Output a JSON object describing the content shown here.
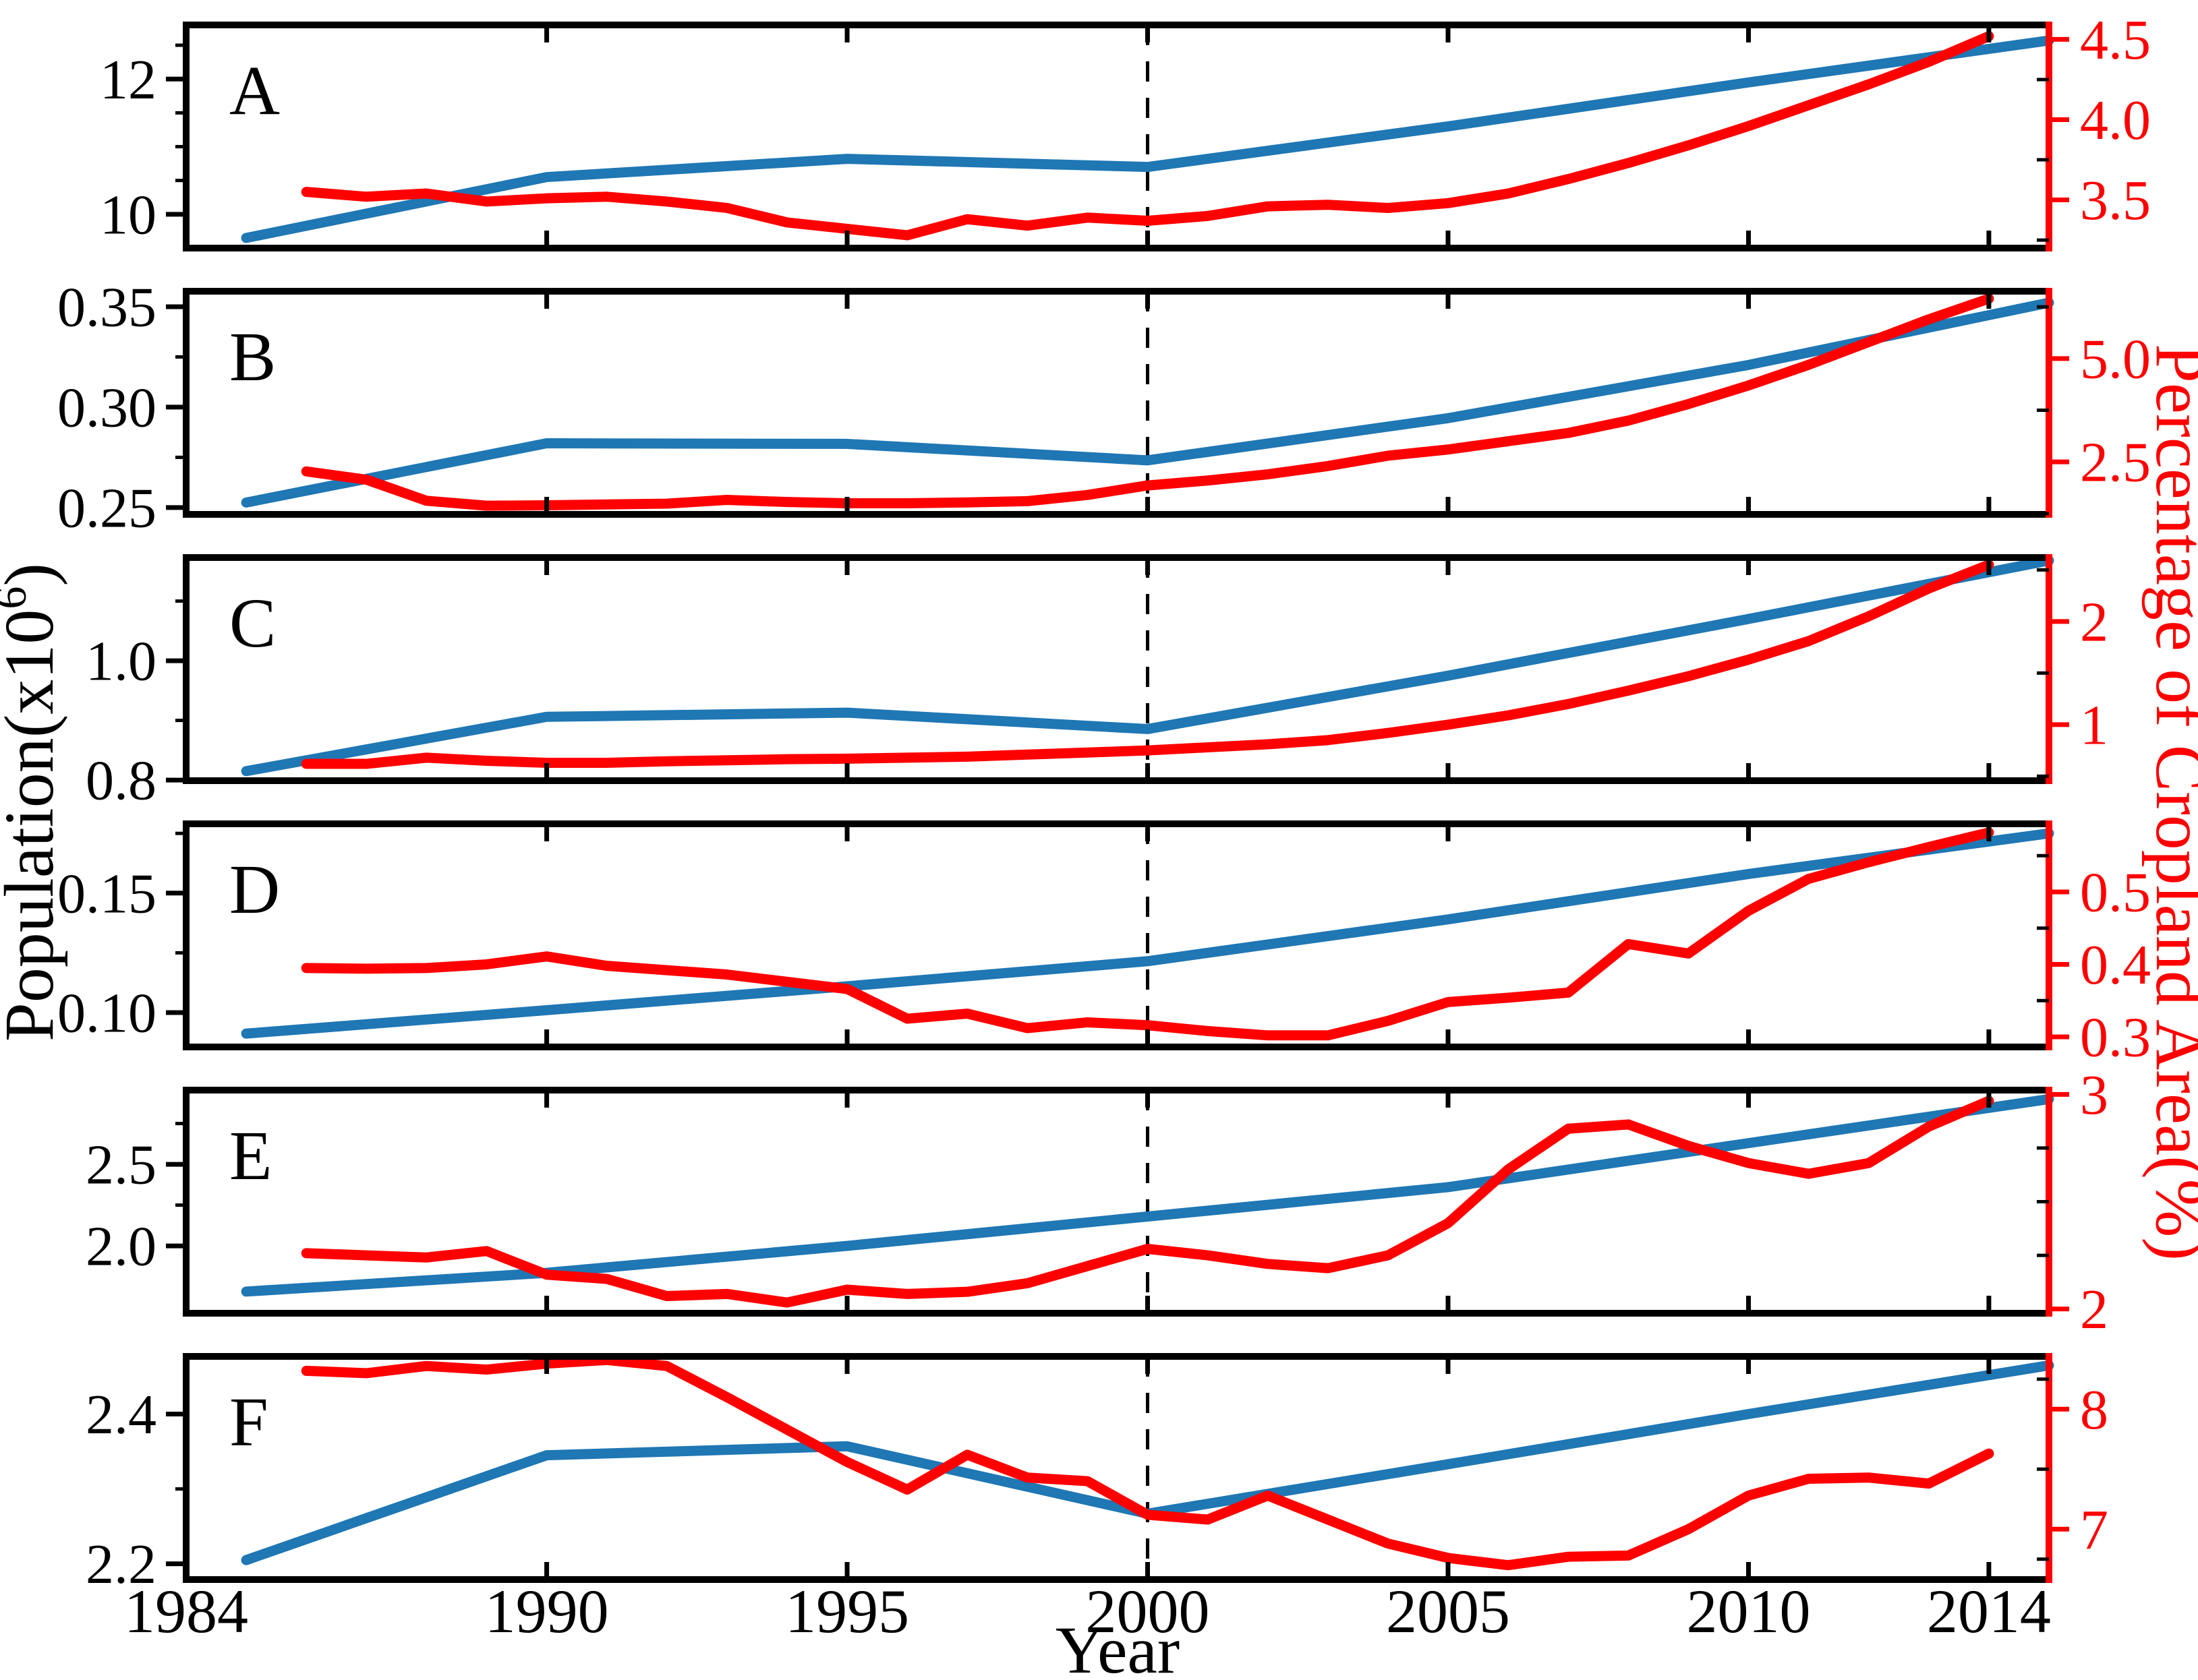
{
  "chart_data": {
    "type": "line",
    "title": "",
    "xlabel": "Year",
    "ylabel_left": {
      "text": "Population(x10",
      "superscript": "6",
      "suffix": ")"
    },
    "ylabel_right": "Percentage of Cropland Area(%)",
    "xlim": [
      1984,
      2015
    ],
    "x_major_ticks": [
      1984,
      1990,
      1995,
      2000,
      2005,
      2010,
      2014
    ],
    "x_tick_labels": [
      "1984",
      "1990",
      "1995",
      "2000",
      "2005",
      "2010",
      "2014"
    ],
    "dashed_line_x": 2000,
    "legend": {
      "shown": false
    },
    "grid": false,
    "colors": {
      "population_line": "#1f77b4",
      "cropland_line": "#ff0000",
      "axis": "#000000",
      "right_axis": "#ff0000",
      "dashed_line": "#000000"
    },
    "series_names": {
      "blue": "Population",
      "red": "Percentage of Cropland Area"
    },
    "panels": [
      {
        "label": "A",
        "left_ylim": [
          9.5,
          12.8
        ],
        "left_ticks": [
          10,
          12
        ],
        "left_tick_labels": [
          "10",
          "12"
        ],
        "left_minor_ticks": [
          10.5,
          11.0,
          11.5,
          12.5
        ],
        "right_ylim": [
          3.2,
          4.59
        ],
        "right_ticks": [
          3.5,
          4.0,
          4.5
        ],
        "right_tick_labels": [
          "3.5",
          "4.0",
          "4.5"
        ],
        "right_minor_ticks": [
          3.25,
          3.75,
          4.25
        ],
        "population": {
          "years": [
            1985,
            1990,
            1995,
            2000,
            2005,
            2010,
            2015
          ],
          "values": [
            9.65,
            10.55,
            10.82,
            10.7,
            11.3,
            11.95,
            12.57
          ]
        },
        "cropland": {
          "years": [
            1986,
            1987,
            1988,
            1989,
            1990,
            1991,
            1992,
            1993,
            1994,
            1995,
            1996,
            1997,
            1998,
            1999,
            2000,
            2001,
            2002,
            2003,
            2004,
            2005,
            2006,
            2007,
            2008,
            2009,
            2010,
            2011,
            2012,
            2013,
            2014
          ],
          "values": [
            3.55,
            3.52,
            3.54,
            3.49,
            3.51,
            3.52,
            3.49,
            3.45,
            3.36,
            3.32,
            3.28,
            3.38,
            3.34,
            3.39,
            3.37,
            3.4,
            3.46,
            3.47,
            3.45,
            3.48,
            3.54,
            3.63,
            3.73,
            3.84,
            3.96,
            4.09,
            4.22,
            4.36,
            4.52
          ]
        }
      },
      {
        "label": "B",
        "left_ylim": [
          0.2466,
          0.3577
        ],
        "left_ticks": [
          0.25,
          0.3,
          0.35
        ],
        "left_tick_labels": [
          "0.25",
          "0.30",
          "0.35"
        ],
        "left_minor_ticks": [
          0.275,
          0.325
        ],
        "right_ylim": [
          1.23,
          6.63
        ],
        "right_ticks": [
          2.5,
          5.0
        ],
        "right_tick_labels": [
          "2.5",
          "5.0"
        ],
        "right_minor_ticks": [
          1.25,
          3.75,
          6.25
        ],
        "population": {
          "years": [
            1985,
            1990,
            1995,
            2000,
            2005,
            2010,
            2015
          ],
          "values": [
            0.2525,
            0.282,
            0.2817,
            0.2735,
            0.2945,
            0.321,
            0.352
          ]
        },
        "cropland": {
          "years": [
            1986,
            1987,
            1988,
            1989,
            1990,
            1991,
            1992,
            1993,
            1994,
            1995,
            1996,
            1997,
            1998,
            1999,
            2000,
            2001,
            2002,
            2003,
            2004,
            2005,
            2006,
            2007,
            2008,
            2009,
            2010,
            2011,
            2012,
            2013,
            2014
          ],
          "values": [
            2.27,
            2.07,
            1.56,
            1.44,
            1.45,
            1.47,
            1.49,
            1.58,
            1.53,
            1.5,
            1.5,
            1.52,
            1.55,
            1.7,
            1.93,
            2.05,
            2.2,
            2.4,
            2.65,
            2.8,
            3.0,
            3.2,
            3.5,
            3.9,
            4.35,
            4.85,
            5.4,
            5.95,
            6.45
          ]
        }
      },
      {
        "label": "C",
        "left_ylim": [
          0.799,
          1.173
        ],
        "left_ticks": [
          0.8,
          1.0
        ],
        "left_tick_labels": [
          "0.8",
          "1.0"
        ],
        "left_minor_ticks": [
          0.9,
          1.1
        ],
        "right_ylim": [
          0.457,
          2.62
        ],
        "right_ticks": [
          1,
          2
        ],
        "right_tick_labels": [
          "1",
          "2"
        ],
        "right_minor_ticks": [
          0.5,
          1.5,
          2.5
        ],
        "population": {
          "years": [
            1985,
            1990,
            1995,
            2000,
            2005,
            2010,
            2015
          ],
          "values": [
            0.815,
            0.906,
            0.913,
            0.8855,
            0.975,
            1.07,
            1.168
          ]
        },
        "cropland": {
          "years": [
            1986,
            1987,
            1988,
            1989,
            1990,
            1991,
            1992,
            1993,
            1994,
            1995,
            1996,
            1997,
            1998,
            1999,
            2000,
            2001,
            2002,
            2003,
            2004,
            2005,
            2006,
            2007,
            2008,
            2009,
            2010,
            2011,
            2012,
            2013,
            2014
          ],
          "values": [
            0.62,
            0.62,
            0.68,
            0.65,
            0.63,
            0.63,
            0.645,
            0.655,
            0.665,
            0.67,
            0.68,
            0.69,
            0.71,
            0.73,
            0.75,
            0.78,
            0.81,
            0.85,
            0.92,
            1.0,
            1.09,
            1.2,
            1.33,
            1.47,
            1.63,
            1.81,
            2.05,
            2.32,
            2.55
          ]
        }
      },
      {
        "label": "D",
        "left_ylim": [
          0.0856,
          0.179
        ],
        "left_ticks": [
          0.1,
          0.15
        ],
        "left_tick_labels": [
          "0.10",
          "0.15"
        ],
        "left_minor_ticks": [
          0.125,
          0.175
        ],
        "right_ylim": [
          0.286,
          0.594
        ],
        "right_ticks": [
          0.3,
          0.4,
          0.5
        ],
        "right_tick_labels": [
          "0.3",
          "0.4",
          "0.5"
        ],
        "right_minor_ticks": [
          0.35,
          0.45,
          0.55
        ],
        "population": {
          "years": [
            1985,
            1990,
            1995,
            2000,
            2005,
            2010,
            2015
          ],
          "values": [
            0.0912,
            0.101,
            0.111,
            0.1215,
            0.139,
            0.158,
            0.175
          ]
        },
        "cropland": {
          "years": [
            1986,
            1987,
            1988,
            1989,
            1990,
            1991,
            1992,
            1993,
            1994,
            1995,
            1996,
            1997,
            1998,
            1999,
            2000,
            2001,
            2002,
            2003,
            2004,
            2005,
            2006,
            2007,
            2008,
            2009,
            2010,
            2011,
            2012,
            2013,
            2014
          ],
          "values": [
            0.395,
            0.394,
            0.395,
            0.4,
            0.411,
            0.398,
            0.392,
            0.386,
            0.376,
            0.366,
            0.325,
            0.332,
            0.312,
            0.32,
            0.316,
            0.308,
            0.302,
            0.302,
            0.322,
            0.348,
            0.354,
            0.361,
            0.428,
            0.415,
            0.474,
            0.518,
            0.541,
            0.562,
            0.582
          ]
        }
      },
      {
        "label": "E",
        "left_ylim": [
          1.587,
          2.955
        ],
        "left_ticks": [
          2.0,
          2.5
        ],
        "left_tick_labels": [
          "2.0",
          "2.5"
        ],
        "left_minor_ticks": [
          2.25,
          2.75
        ],
        "right_ylim": [
          1.98,
          3.02
        ],
        "right_ticks": [
          2,
          3
        ],
        "right_tick_labels": [
          "2",
          "3"
        ],
        "right_minor_ticks": [
          2.25,
          2.5,
          2.75
        ],
        "population": {
          "years": [
            1985,
            1990,
            1995,
            2000,
            2005,
            2010,
            2015
          ],
          "values": [
            1.72,
            1.835,
            2.0,
            2.18,
            2.36,
            2.63,
            2.9
          ]
        },
        "cropland": {
          "years": [
            1986,
            1987,
            1988,
            1989,
            1990,
            1991,
            1992,
            1993,
            1994,
            1995,
            1996,
            1997,
            1998,
            1999,
            2000,
            2001,
            2002,
            2003,
            2004,
            2005,
            2006,
            2007,
            2008,
            2009,
            2010,
            2011,
            2012,
            2013,
            2014
          ],
          "values": [
            2.26,
            2.25,
            2.24,
            2.27,
            2.16,
            2.14,
            2.06,
            2.07,
            2.03,
            2.09,
            2.07,
            2.08,
            2.12,
            2.2,
            2.28,
            2.25,
            2.21,
            2.19,
            2.25,
            2.4,
            2.65,
            2.84,
            2.86,
            2.76,
            2.68,
            2.63,
            2.68,
            2.85,
            2.97
          ]
        }
      },
      {
        "label": "F",
        "left_ylim": [
          2.179,
          2.477
        ],
        "left_ticks": [
          2.2,
          2.4
        ],
        "left_tick_labels": [
          "2.2",
          "2.4"
        ],
        "left_minor_ticks": [
          2.3
        ],
        "right_ylim": [
          6.58,
          8.44
        ],
        "right_ticks": [
          7,
          8
        ],
        "right_tick_labels": [
          "7",
          "8"
        ],
        "right_minor_ticks": [
          6.75,
          7.5,
          8.25
        ],
        "population": {
          "years": [
            1985,
            1990,
            1995,
            2000,
            2005,
            2010,
            2015
          ],
          "values": [
            2.205,
            2.345,
            2.357,
            2.267,
            2.333,
            2.4,
            2.465
          ]
        },
        "cropland": {
          "years": [
            1986,
            1987,
            1988,
            1989,
            1990,
            1991,
            1992,
            1993,
            1994,
            1995,
            1996,
            1997,
            1998,
            1999,
            2000,
            2001,
            2002,
            2003,
            2004,
            2005,
            2006,
            2007,
            2008,
            2009,
            2010,
            2011,
            2012,
            2013,
            2014
          ],
          "values": [
            8.32,
            8.3,
            8.36,
            8.33,
            8.38,
            8.41,
            8.36,
            8.1,
            7.83,
            7.56,
            7.33,
            7.62,
            7.43,
            7.4,
            7.12,
            7.08,
            7.28,
            7.08,
            6.88,
            6.76,
            6.7,
            6.77,
            6.78,
            7.0,
            7.28,
            7.42,
            7.43,
            7.38,
            7.63
          ]
        }
      }
    ]
  }
}
